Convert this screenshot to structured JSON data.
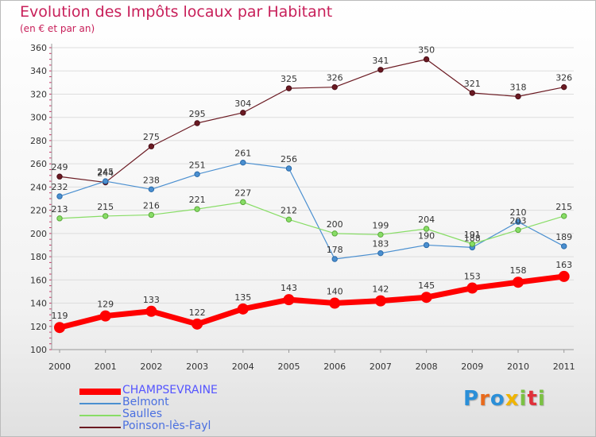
{
  "title": "Evolution des Impôts locaux par Habitant",
  "subtitle": "(en € et par an)",
  "logo_text": "Proxiti",
  "chart_data": {
    "type": "line",
    "title": "Evolution des Impôts locaux par Habitant",
    "subtitle": "(en € et par an)",
    "x": [
      "2000",
      "2001",
      "2002",
      "2003",
      "2004",
      "2005",
      "2006",
      "2007",
      "2008",
      "2009",
      "2010",
      "2011"
    ],
    "ylim": [
      100,
      360
    ],
    "yticks": [
      100,
      120,
      140,
      160,
      180,
      200,
      220,
      240,
      260,
      280,
      300,
      320,
      340,
      360
    ],
    "grid": "horizontal",
    "legend_position": "bottom-left",
    "series": [
      {
        "name": "CHAMPSEVRAINE",
        "color": "#ff0000",
        "values": [
          119,
          129,
          133,
          122,
          135,
          143,
          140,
          142,
          145,
          153,
          158,
          163
        ]
      },
      {
        "name": "Belmont",
        "color": "#4a8fd0",
        "values": [
          232,
          245,
          238,
          251,
          261,
          256,
          178,
          183,
          190,
          188,
          210,
          189
        ]
      },
      {
        "name": "Saulles",
        "color": "#88dd66",
        "values": [
          213,
          215,
          216,
          221,
          227,
          212,
          200,
          199,
          204,
          191,
          203,
          215
        ]
      },
      {
        "name": "Poinson-lès-Fayl",
        "color": "#6b1a22",
        "values": [
          249,
          244,
          275,
          295,
          304,
          325,
          326,
          341,
          350,
          321,
          318,
          326
        ]
      }
    ]
  }
}
